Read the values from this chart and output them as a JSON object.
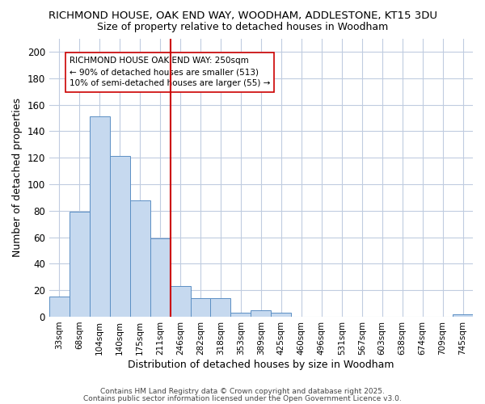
{
  "title1": "RICHMOND HOUSE, OAK END WAY, WOODHAM, ADDLESTONE, KT15 3DU",
  "title2": "Size of property relative to detached houses in Woodham",
  "xlabel": "Distribution of detached houses by size in Woodham",
  "ylabel": "Number of detached properties",
  "categories": [
    "33sqm",
    "68sqm",
    "104sqm",
    "140sqm",
    "175sqm",
    "211sqm",
    "246sqm",
    "282sqm",
    "318sqm",
    "353sqm",
    "389sqm",
    "425sqm",
    "460sqm",
    "496sqm",
    "531sqm",
    "567sqm",
    "603sqm",
    "638sqm",
    "674sqm",
    "709sqm",
    "745sqm"
  ],
  "values": [
    15,
    79,
    151,
    121,
    88,
    59,
    23,
    14,
    14,
    3,
    5,
    3,
    0,
    0,
    0,
    0,
    0,
    0,
    0,
    0,
    2
  ],
  "bar_color": "#c6d9ef",
  "bar_edge_color": "#5b8fc4",
  "vline_x_index": 6,
  "vline_color": "#cc0000",
  "annotation_text": "RICHMOND HOUSE OAK END WAY: 250sqm\n← 90% of detached houses are smaller (513)\n10% of semi-detached houses are larger (55) →",
  "annotation_box_color": "#ffffff",
  "annotation_box_edge": "#cc0000",
  "ylim": [
    0,
    210
  ],
  "yticks": [
    0,
    20,
    40,
    60,
    80,
    100,
    120,
    140,
    160,
    180,
    200
  ],
  "bg_color": "#ffffff",
  "plot_bg_color": "#ffffff",
  "grid_color": "#c0cce0",
  "footer1": "Contains HM Land Registry data © Crown copyright and database right 2025.",
  "footer2": "Contains public sector information licensed under the Open Government Licence v3.0."
}
